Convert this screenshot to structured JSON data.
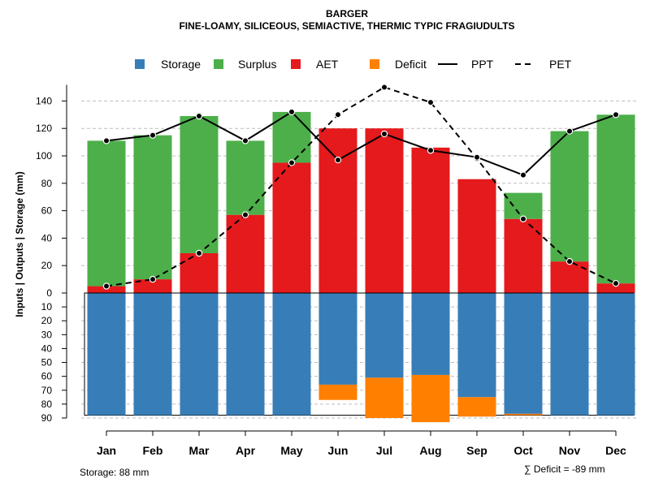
{
  "chart_data": {
    "type": "bar",
    "title": "BARGER",
    "subtitle": "FINE-LOAMY, SILICEOUS, SEMIACTIVE, THERMIC TYPIC FRAGIUDULTS",
    "ylabel": "Inputs | Outputs | Storage     (mm)",
    "categories": [
      "Jan",
      "Feb",
      "Mar",
      "Apr",
      "May",
      "Jun",
      "Jul",
      "Aug",
      "Sep",
      "Oct",
      "Nov",
      "Dec"
    ],
    "ylim_top": [
      0,
      150
    ],
    "ylim_bottom": [
      0,
      90
    ],
    "yticks_top": [
      0,
      20,
      40,
      60,
      80,
      100,
      120,
      140
    ],
    "yticks_top_labels": [
      "0",
      "20",
      "40",
      "60",
      "80",
      "100",
      "120",
      "140"
    ],
    "yticks_bottom": [
      10,
      20,
      30,
      40,
      50,
      60,
      70,
      80,
      90
    ],
    "yticks_bottom_labels": [
      "10",
      "20",
      "30",
      "40",
      "50",
      "60",
      "70",
      "80",
      "90"
    ],
    "series": [
      {
        "name": "AET",
        "color": "#E41A1C",
        "values": [
          5,
          10,
          29,
          57,
          95,
          120,
          120,
          106,
          83,
          54,
          23,
          7
        ]
      },
      {
        "name": "Surplus",
        "color": "#4DAF4A",
        "values": [
          106,
          105,
          100,
          54,
          37,
          0,
          0,
          0,
          0,
          19,
          95,
          123
        ]
      },
      {
        "name": "Storage",
        "color": "#377EB8",
        "values": [
          88,
          88,
          88,
          88,
          88,
          66,
          61,
          59,
          75,
          87,
          88,
          88
        ]
      },
      {
        "name": "Deficit",
        "color": "#FF7F00",
        "values": [
          0,
          0,
          0,
          0,
          0,
          11,
          29,
          34,
          14,
          1,
          0,
          0
        ]
      },
      {
        "name": "PPT",
        "color": "#000000",
        "values": [
          111,
          115,
          129,
          111,
          132,
          97,
          116,
          104,
          99,
          86,
          118,
          130
        ]
      },
      {
        "name": "PET",
        "color": "#000000",
        "values": [
          5,
          10,
          29,
          57,
          95,
          130,
          150,
          139,
          98,
          54,
          23,
          7
        ]
      }
    ],
    "legend": [
      {
        "label": "Storage",
        "color": "#377EB8",
        "kind": "box"
      },
      {
        "label": "Surplus",
        "color": "#4DAF4A",
        "kind": "box"
      },
      {
        "label": "AET",
        "color": "#E41A1C",
        "kind": "box"
      },
      {
        "label": "Deficit",
        "color": "#FF7F00",
        "kind": "box"
      },
      {
        "label": "PPT",
        "color": "#000000",
        "kind": "solid"
      },
      {
        "label": "PET",
        "color": "#000000",
        "kind": "dashed"
      }
    ],
    "footer_storage": "Storage: 88 mm",
    "footer_deficit": "∑ Deficit = -89 mm",
    "grid": true,
    "legend_position": "top"
  }
}
